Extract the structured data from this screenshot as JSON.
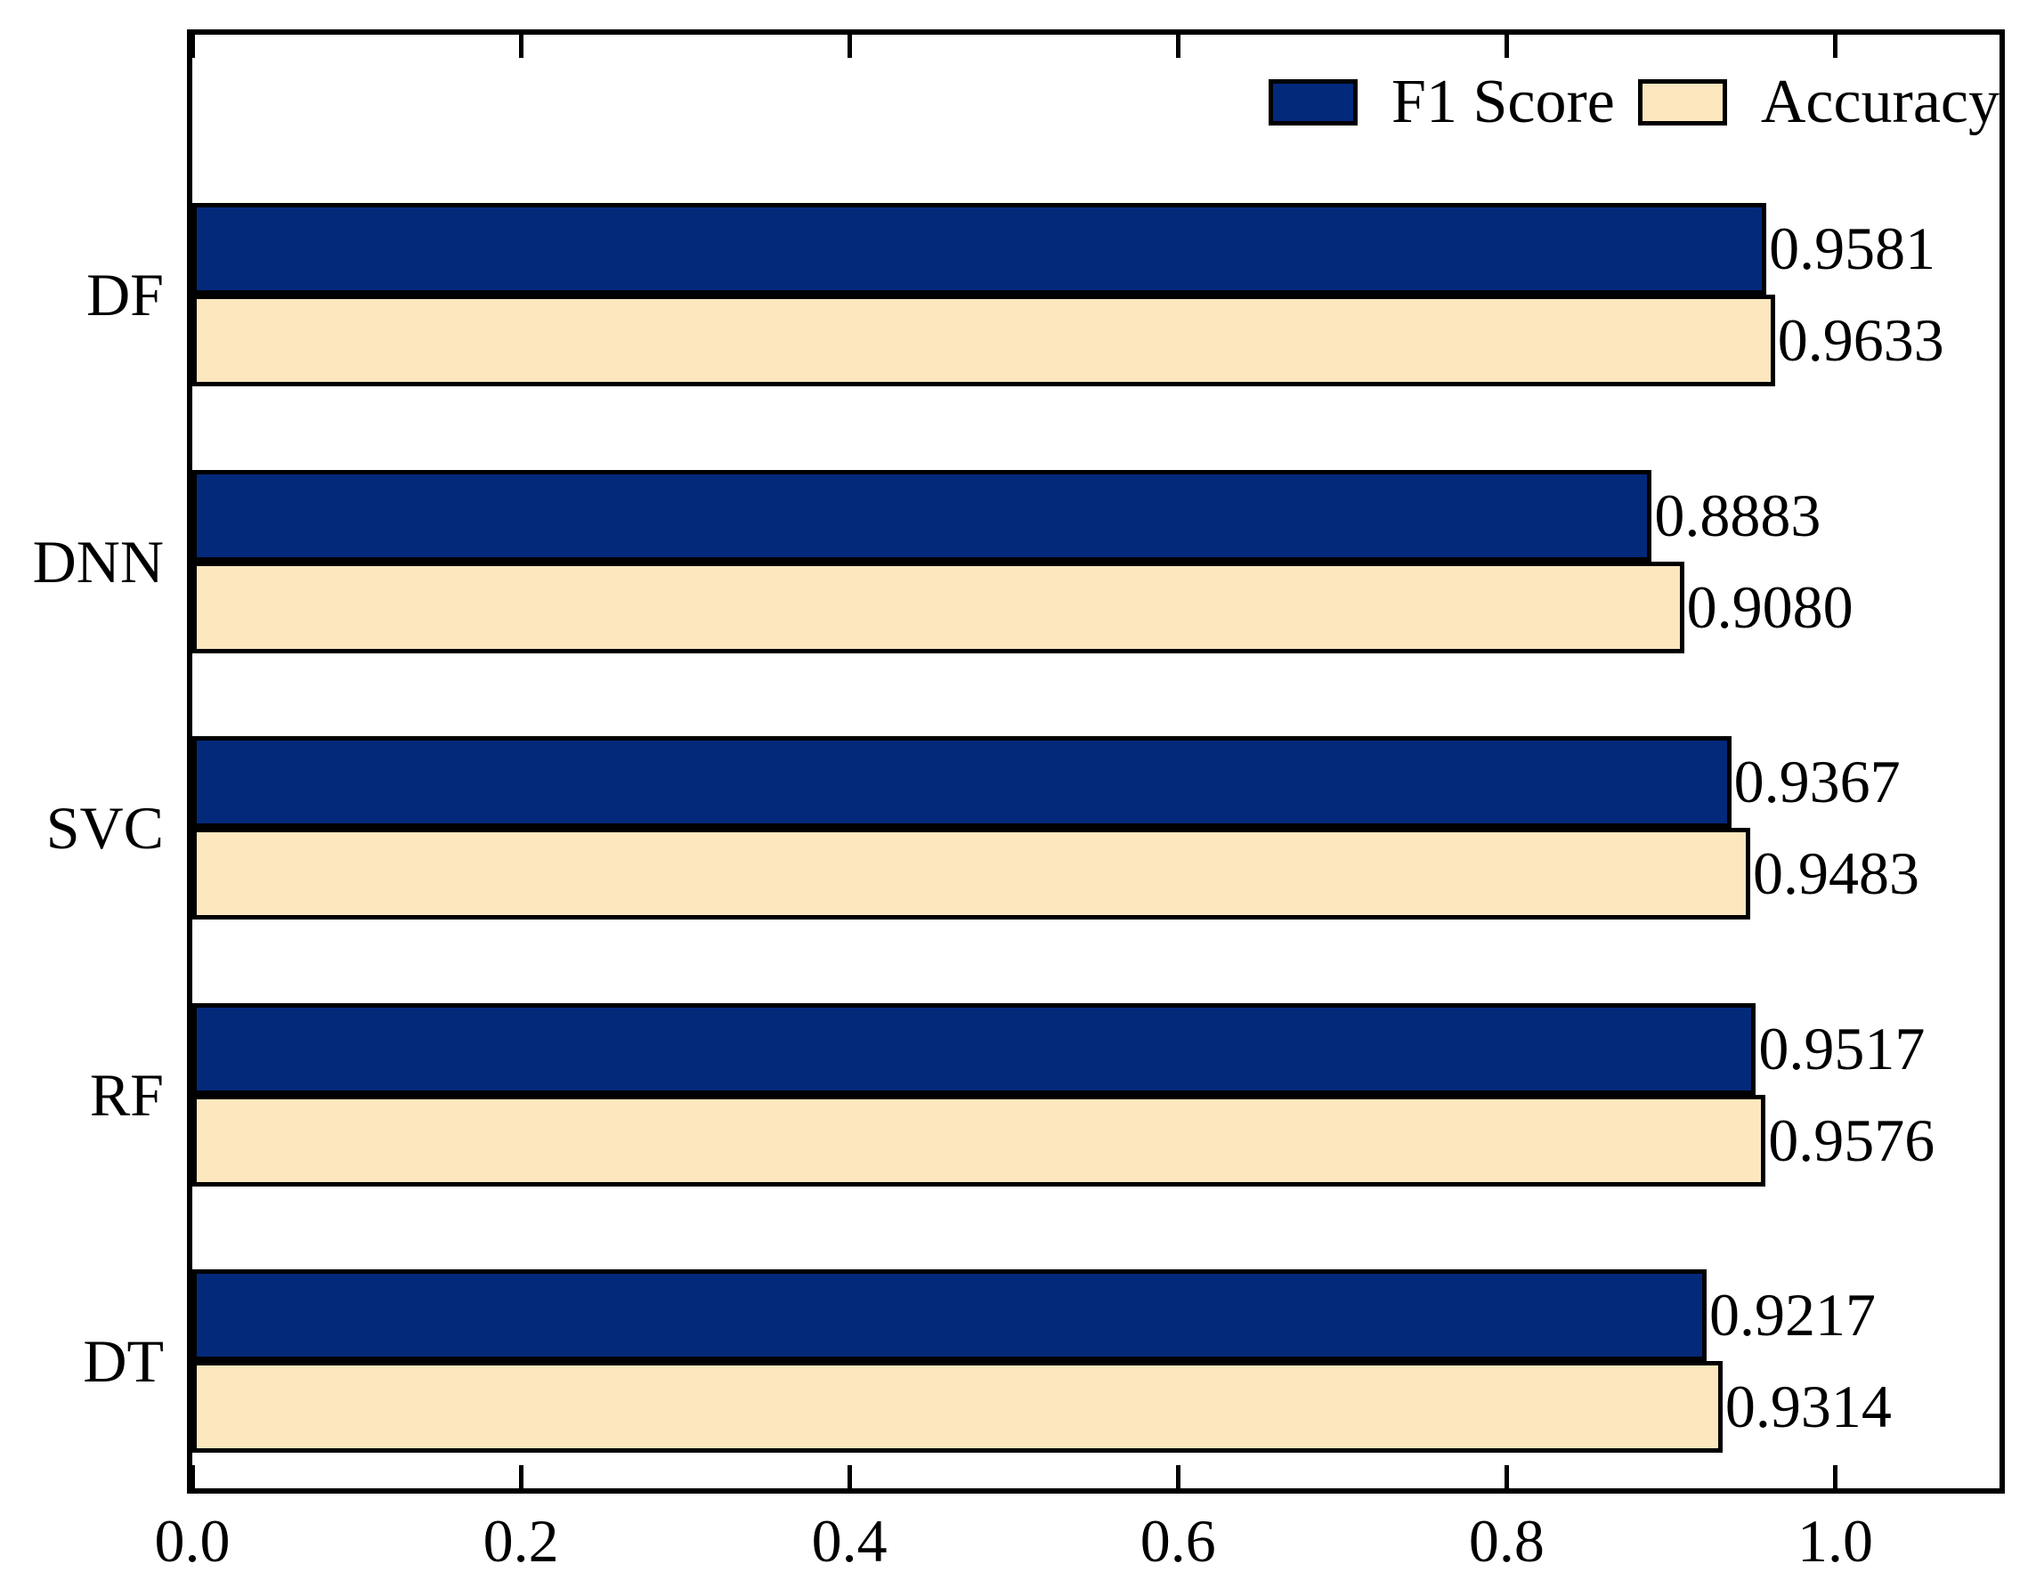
{
  "chart_data": {
    "type": "bar",
    "orientation": "horizontal",
    "title": "",
    "xlabel": "",
    "ylabel": "",
    "categories": [
      "DF",
      "DNN",
      "SVC",
      "RF",
      "DT"
    ],
    "series": [
      {
        "name": "F1 Score",
        "color": "#03297B",
        "values": [
          0.9581,
          0.8883,
          0.9367,
          0.9517,
          0.9217
        ],
        "labels": [
          "0.9581",
          "0.8883",
          "0.9367",
          "0.9517",
          "0.9217"
        ]
      },
      {
        "name": "Accuracy",
        "color": "#FCE7BE",
        "values": [
          0.9633,
          0.908,
          0.9483,
          0.9576,
          0.9314
        ],
        "labels": [
          "0.9633",
          "0.9080",
          "0.9483",
          "0.9576",
          "0.9314"
        ]
      }
    ],
    "xlim": [
      0,
      1.1
    ],
    "xticks": [
      {
        "value": 0.0,
        "label": "0.0"
      },
      {
        "value": 0.2,
        "label": "0.2"
      },
      {
        "value": 0.4,
        "label": "0.4"
      },
      {
        "value": 0.6,
        "label": "0.6"
      },
      {
        "value": 0.8,
        "label": "0.8"
      },
      {
        "value": 1.0,
        "label": "1.0"
      }
    ],
    "grid": false,
    "legend_position": "top-right",
    "bar_edge_color": "#000000",
    "text_color": "#000000",
    "background_color": "#FFFFFF"
  }
}
